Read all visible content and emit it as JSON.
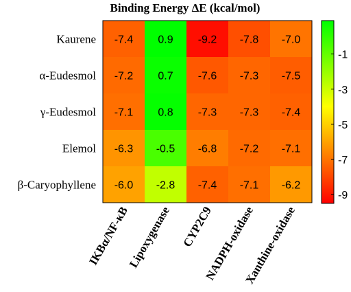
{
  "chart_data": {
    "type": "heatmap",
    "title": "Binding Energy ΔE (kcal/mol)",
    "rows": [
      "Kaurene",
      "α-Eudesmol",
      "γ-Eudesmol",
      "Elemol",
      "β-Caryophyllene"
    ],
    "columns": [
      "IKBα/NF-κB",
      "Lipoxygenase",
      "CYP2C9",
      "NADPH-oxidase",
      "Xanthine-oxidase"
    ],
    "values": [
      [
        -7.4,
        0.9,
        -9.2,
        -7.8,
        -7.0
      ],
      [
        -7.2,
        0.7,
        -7.6,
        -7.3,
        -7.5
      ],
      [
        -7.1,
        0.8,
        -7.3,
        -7.3,
        -7.4
      ],
      [
        -6.3,
        -0.5,
        -6.8,
        -7.2,
        -7.1
      ],
      [
        -6.0,
        -2.8,
        -7.4,
        -7.1,
        -6.2
      ]
    ],
    "value_labels": [
      [
        "-7.4",
        "0.9",
        "-9.2",
        "-7.8",
        "-7.0"
      ],
      [
        "-7.2",
        "0.7",
        "-7.6",
        "-7.3",
        "-7.5"
      ],
      [
        "-7.1",
        "0.8",
        "-7.3",
        "-7.3",
        "-7.4"
      ],
      [
        "-6.3",
        "-0.5",
        "-6.8",
        "-7.2",
        "-7.1"
      ],
      [
        "-6.0",
        "-2.8",
        "-7.4",
        "-7.1",
        "-6.2"
      ]
    ],
    "colorbar": {
      "range": [
        -9.5,
        0.9
      ],
      "ticks": [
        -1,
        -3,
        -5,
        -7,
        -9
      ],
      "colors": {
        "high": "#00ff00",
        "mid": "#ffff00",
        "low": "#ff0000"
      }
    }
  }
}
